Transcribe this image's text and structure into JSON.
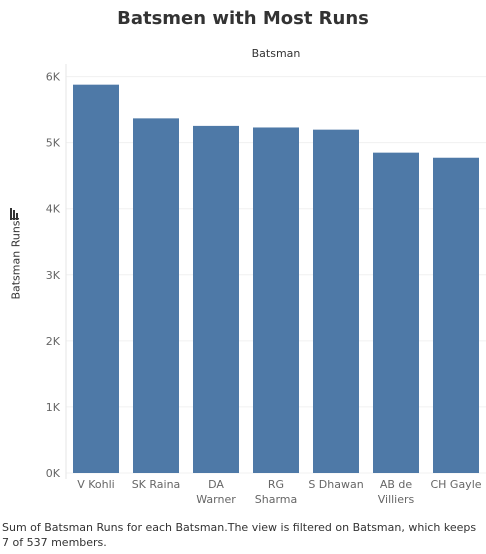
{
  "chart_data": {
    "type": "bar",
    "title": "Batsmen with Most Runs",
    "x_header": "Batsman",
    "ylabel": "Batsman Runs",
    "categories": [
      [
        "V Kohli"
      ],
      [
        "SK Raina"
      ],
      [
        "DA",
        "Warner"
      ],
      [
        "RG",
        "Sharma"
      ],
      [
        "S Dhawan"
      ],
      [
        "AB de",
        "Villiers"
      ],
      [
        "CH Gayle"
      ]
    ],
    "series": [
      {
        "values": [
          5878,
          5368,
          5254,
          5230,
          5197,
          4849,
          4772
        ]
      }
    ],
    "ylim": [
      0,
      6100
    ],
    "yticks": [
      0,
      1000,
      2000,
      3000,
      4000,
      5000,
      6000
    ],
    "ytick_labels": [
      "0K",
      "1K",
      "2K",
      "3K",
      "4K",
      "5K",
      "6K"
    ],
    "grid": true,
    "bar_color": "#4e79a7",
    "sort_icon": "sort-descending-icon"
  },
  "footnote": "Sum of Batsman Runs for each Batsman.The view is filtered on Batsman, which keeps 7 of 537 members."
}
